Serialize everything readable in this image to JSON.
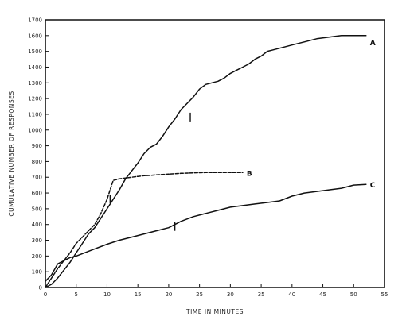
{
  "chart_data": {
    "type": "line",
    "xlabel": "TIME IN MINUTES",
    "ylabel": "CUMULATIVE NUMBER OF RESPONSES",
    "xlim": [
      0,
      55
    ],
    "ylim": [
      0,
      1700
    ],
    "x_ticks": [
      {
        "value": 0,
        "label": "0"
      },
      {
        "value": 5,
        "label": "5"
      },
      {
        "value": 10,
        "label": "10"
      },
      {
        "value": 15,
        "label": "15"
      },
      {
        "value": 20,
        "label": "20"
      },
      {
        "value": 25,
        "label": "25"
      },
      {
        "value": 30,
        "label": "30"
      },
      {
        "value": 35,
        "label": "35"
      },
      {
        "value": 40,
        "label": "40"
      },
      {
        "value": 45,
        "label": "45"
      },
      {
        "value": 50,
        "label": "50"
      },
      {
        "value": 55,
        "label": "55"
      }
    ],
    "y_ticks": [
      {
        "value": 0,
        "label": "0"
      },
      {
        "value": 100,
        "label": "100"
      },
      {
        "value": 200,
        "label": "200"
      },
      {
        "value": 300,
        "label": "300"
      },
      {
        "value": 400,
        "label": "400"
      },
      {
        "value": 500,
        "label": "500"
      },
      {
        "value": 600,
        "label": "600"
      },
      {
        "value": 700,
        "label": "700"
      },
      {
        "value": 800,
        "label": "800"
      },
      {
        "value": 900,
        "label": "900"
      },
      {
        "value": 1000,
        "label": "1000"
      },
      {
        "value": 1100,
        "label": "1100"
      },
      {
        "value": 1200,
        "label": "1200"
      },
      {
        "value": 1300,
        "label": "1300"
      },
      {
        "value": 1400,
        "label": "1400"
      },
      {
        "value": 1500,
        "label": "1500"
      },
      {
        "value": 1600,
        "label": "1600"
      },
      {
        "value": 1700,
        "label": "1700"
      }
    ],
    "grid": false,
    "series": [
      {
        "name": "A",
        "style": "solid",
        "x": [
          0,
          1,
          2,
          3,
          4,
          5,
          6,
          7,
          8,
          9,
          10,
          11,
          12,
          13,
          14,
          15,
          16,
          17,
          18,
          19,
          20,
          21,
          22,
          23,
          24,
          25,
          26,
          27,
          28,
          29,
          30,
          31,
          32,
          33,
          34,
          35,
          36,
          37,
          38,
          39,
          40,
          41,
          42,
          43,
          44,
          45,
          46,
          47,
          48,
          49,
          50,
          51,
          52
        ],
        "y": [
          0,
          20,
          60,
          110,
          160,
          220,
          280,
          340,
          380,
          440,
          500,
          560,
          620,
          690,
          740,
          790,
          850,
          890,
          910,
          960,
          1020,
          1070,
          1130,
          1170,
          1210,
          1260,
          1290,
          1300,
          1310,
          1330,
          1360,
          1380,
          1400,
          1420,
          1450,
          1470,
          1500,
          1510,
          1520,
          1530,
          1540,
          1550,
          1560,
          1570,
          1580,
          1585,
          1590,
          1595,
          1600,
          1600,
          1600,
          1600,
          1600
        ]
      },
      {
        "name": "B",
        "style": "dashed",
        "x": [
          0,
          1,
          2,
          3,
          4,
          5,
          6,
          7,
          8,
          9,
          10,
          10.5,
          11,
          12,
          13,
          14,
          15,
          16,
          18,
          20,
          22,
          24,
          26,
          28,
          30,
          32
        ],
        "y": [
          0,
          60,
          120,
          170,
          220,
          280,
          320,
          360,
          400,
          470,
          560,
          620,
          680,
          690,
          695,
          700,
          705,
          710,
          715,
          720,
          725,
          728,
          730,
          730,
          730,
          730
        ]
      },
      {
        "name": "C",
        "style": "solid",
        "x": [
          0,
          1,
          2,
          3,
          4,
          5,
          6,
          7,
          8,
          9,
          10,
          12,
          14,
          16,
          18,
          20,
          22,
          24,
          26,
          28,
          30,
          32,
          34,
          36,
          38,
          40,
          42,
          44,
          46,
          48,
          50,
          52
        ],
        "y": [
          40,
          80,
          150,
          170,
          190,
          200,
          215,
          230,
          245,
          260,
          275,
          300,
          320,
          340,
          360,
          380,
          420,
          450,
          470,
          490,
          510,
          520,
          530,
          540,
          550,
          580,
          600,
          610,
          620,
          630,
          650,
          655
        ]
      }
    ],
    "annotations": [
      "A",
      "B",
      "C"
    ]
  }
}
